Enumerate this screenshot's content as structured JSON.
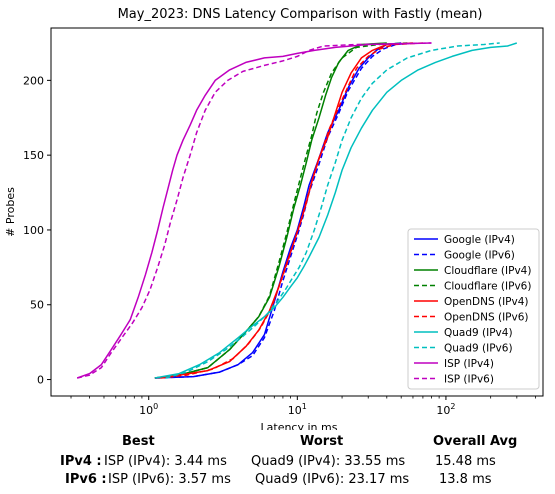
{
  "chart_data": {
    "type": "line",
    "title": "May_2023: DNS Latency Comparison with Fastly (mean)",
    "xlabel": "Latency in ms",
    "ylabel": "# Probes",
    "xscale": "log",
    "xlim": [
      0.22,
      450
    ],
    "ylim": [
      -11,
      235
    ],
    "xticks": [
      1,
      10,
      100
    ],
    "xtick_labels": [
      "10^0",
      "10^1",
      "10^2"
    ],
    "yticks": [
      0,
      50,
      100,
      150,
      200
    ],
    "grid": false,
    "legend_position": "lower-right",
    "series": [
      {
        "name": "Google (IPv4)",
        "color": "#0000ff",
        "dash": "solid",
        "points": [
          [
            1.1,
            1
          ],
          [
            2.0,
            2
          ],
          [
            3.0,
            5
          ],
          [
            4.0,
            10
          ],
          [
            5.0,
            18
          ],
          [
            6.0,
            30
          ],
          [
            7.0,
            52
          ],
          [
            8.0,
            72
          ],
          [
            9.0,
            88
          ],
          [
            10.0,
            100
          ],
          [
            11.0,
            115
          ],
          [
            12.0,
            130
          ],
          [
            14.0,
            148
          ],
          [
            16.0,
            165
          ],
          [
            19.0,
            180
          ],
          [
            22.0,
            195
          ],
          [
            26.0,
            208
          ],
          [
            30.0,
            215
          ],
          [
            34.0,
            220
          ],
          [
            40.0,
            224
          ],
          [
            50.0,
            225
          ]
        ]
      },
      {
        "name": "Google (IPv6)",
        "color": "#0000ff",
        "dash": "dashed",
        "points": [
          [
            1.1,
            1
          ],
          [
            2.0,
            2
          ],
          [
            3.0,
            5
          ],
          [
            4.0,
            10
          ],
          [
            5.0,
            16
          ],
          [
            6.0,
            28
          ],
          [
            7.0,
            46
          ],
          [
            8.0,
            66
          ],
          [
            9.0,
            82
          ],
          [
            10.0,
            96
          ],
          [
            11.0,
            110
          ],
          [
            12.0,
            125
          ],
          [
            14.0,
            144
          ],
          [
            16.0,
            162
          ],
          [
            19.0,
            178
          ],
          [
            22.0,
            193
          ],
          [
            27.0,
            208
          ],
          [
            32.0,
            216
          ],
          [
            38.0,
            221
          ],
          [
            46.0,
            224
          ],
          [
            60.0,
            225
          ]
        ]
      },
      {
        "name": "Cloudflare (IPv4)",
        "color": "#008000",
        "dash": "solid",
        "points": [
          [
            1.1,
            1
          ],
          [
            1.6,
            3
          ],
          [
            2.5,
            8
          ],
          [
            3.5,
            20
          ],
          [
            4.5,
            32
          ],
          [
            5.5,
            42
          ],
          [
            6.5,
            55
          ],
          [
            7.5,
            75
          ],
          [
            8.5,
            95
          ],
          [
            9.5,
            115
          ],
          [
            10.5,
            130
          ],
          [
            11.5,
            145
          ],
          [
            12.5,
            160
          ],
          [
            14.0,
            175
          ],
          [
            15.5,
            190
          ],
          [
            17.0,
            202
          ],
          [
            19.0,
            212
          ],
          [
            22.0,
            220
          ],
          [
            27.0,
            224
          ],
          [
            40.0,
            225
          ]
        ]
      },
      {
        "name": "Cloudflare (IPv6)",
        "color": "#008000",
        "dash": "dashed",
        "points": [
          [
            1.1,
            1
          ],
          [
            1.6,
            3
          ],
          [
            2.5,
            8
          ],
          [
            3.5,
            20
          ],
          [
            4.5,
            32
          ],
          [
            5.5,
            42
          ],
          [
            6.5,
            56
          ],
          [
            7.5,
            78
          ],
          [
            8.5,
            98
          ],
          [
            9.5,
            118
          ],
          [
            10.5,
            135
          ],
          [
            11.5,
            150
          ],
          [
            12.5,
            163
          ],
          [
            13.5,
            178
          ],
          [
            15.0,
            192
          ],
          [
            17.0,
            205
          ],
          [
            20.0,
            215
          ],
          [
            25.0,
            222
          ],
          [
            35.0,
            224
          ],
          [
            55.0,
            225
          ]
        ]
      },
      {
        "name": "OpenDNS (IPv4)",
        "color": "#ff0000",
        "dash": "solid",
        "points": [
          [
            1.1,
            1
          ],
          [
            1.6,
            3
          ],
          [
            2.5,
            6
          ],
          [
            3.5,
            12
          ],
          [
            4.5,
            22
          ],
          [
            5.5,
            33
          ],
          [
            6.5,
            46
          ],
          [
            7.5,
            62
          ],
          [
            8.5,
            78
          ],
          [
            9.5,
            92
          ],
          [
            10.5,
            105
          ],
          [
            11.5,
            118
          ],
          [
            12.5,
            132
          ],
          [
            14.0,
            148
          ],
          [
            16.0,
            162
          ],
          [
            18.0,
            178
          ],
          [
            20.0,
            192
          ],
          [
            23.0,
            205
          ],
          [
            27.0,
            215
          ],
          [
            32.0,
            220
          ],
          [
            40.0,
            224
          ],
          [
            60.0,
            225
          ]
        ]
      },
      {
        "name": "OpenDNS (IPv6)",
        "color": "#ff0000",
        "dash": "dashed",
        "points": [
          [
            1.2,
            1
          ],
          [
            1.8,
            3
          ],
          [
            2.7,
            7
          ],
          [
            3.7,
            14
          ],
          [
            4.7,
            24
          ],
          [
            5.7,
            35
          ],
          [
            6.7,
            48
          ],
          [
            7.7,
            65
          ],
          [
            8.7,
            80
          ],
          [
            9.7,
            95
          ],
          [
            10.7,
            108
          ],
          [
            11.7,
            122
          ],
          [
            13.0,
            138
          ],
          [
            14.5,
            152
          ],
          [
            16.5,
            168
          ],
          [
            19.0,
            182
          ],
          [
            22.0,
            196
          ],
          [
            25.0,
            208
          ],
          [
            30.0,
            216
          ],
          [
            36.0,
            221
          ],
          [
            45.0,
            224
          ],
          [
            70.0,
            225
          ]
        ]
      },
      {
        "name": "Quad9 (IPv4)",
        "color": "#00bfbf",
        "dash": "solid",
        "points": [
          [
            1.1,
            1
          ],
          [
            1.6,
            4
          ],
          [
            2.2,
            10
          ],
          [
            3.0,
            18
          ],
          [
            4.0,
            28
          ],
          [
            5.0,
            36
          ],
          [
            6.0,
            42
          ],
          [
            7.0,
            48
          ],
          [
            8.0,
            55
          ],
          [
            9.0,
            62
          ],
          [
            10.0,
            68
          ],
          [
            11.0,
            75
          ],
          [
            12.0,
            82
          ],
          [
            14.0,
            95
          ],
          [
            16.0,
            110
          ],
          [
            18.0,
            125
          ],
          [
            20.0,
            140
          ],
          [
            23.0,
            155
          ],
          [
            27.0,
            168
          ],
          [
            32.0,
            180
          ],
          [
            40.0,
            192
          ],
          [
            50.0,
            200
          ],
          [
            65.0,
            207
          ],
          [
            85.0,
            212
          ],
          [
            110.0,
            216
          ],
          [
            150.0,
            220
          ],
          [
            200.0,
            222
          ],
          [
            260.0,
            223
          ],
          [
            300.0,
            225
          ]
        ]
      },
      {
        "name": "Quad9 (IPv6)",
        "color": "#00bfbf",
        "dash": "dashed",
        "points": [
          [
            1.3,
            1
          ],
          [
            1.8,
            5
          ],
          [
            2.5,
            12
          ],
          [
            3.3,
            20
          ],
          [
            4.2,
            28
          ],
          [
            5.2,
            36
          ],
          [
            6.3,
            44
          ],
          [
            7.3,
            52
          ],
          [
            8.3,
            60
          ],
          [
            9.3,
            68
          ],
          [
            10.3,
            75
          ],
          [
            11.5,
            85
          ],
          [
            13.0,
            100
          ],
          [
            14.5,
            115
          ],
          [
            16.0,
            130
          ],
          [
            18.0,
            145
          ],
          [
            20.0,
            160
          ],
          [
            23.0,
            175
          ],
          [
            27.0,
            188
          ],
          [
            32.0,
            198
          ],
          [
            40.0,
            207
          ],
          [
            55.0,
            215
          ],
          [
            80.0,
            220
          ],
          [
            120.0,
            223
          ],
          [
            180.0,
            224
          ],
          [
            230.0,
            225
          ]
        ]
      },
      {
        "name": "ISP (IPv4)",
        "color": "#bf00bf",
        "dash": "solid",
        "points": [
          [
            0.33,
            1
          ],
          [
            0.4,
            4
          ],
          [
            0.48,
            10
          ],
          [
            0.56,
            20
          ],
          [
            0.65,
            30
          ],
          [
            0.75,
            40
          ],
          [
            0.85,
            55
          ],
          [
            0.95,
            70
          ],
          [
            1.05,
            85
          ],
          [
            1.15,
            100
          ],
          [
            1.25,
            115
          ],
          [
            1.35,
            128
          ],
          [
            1.45,
            140
          ],
          [
            1.55,
            150
          ],
          [
            1.7,
            160
          ],
          [
            1.9,
            170
          ],
          [
            2.1,
            180
          ],
          [
            2.4,
            190
          ],
          [
            2.8,
            200
          ],
          [
            3.5,
            207
          ],
          [
            4.5,
            212
          ],
          [
            6.0,
            215
          ],
          [
            8.0,
            216
          ],
          [
            10.0,
            218
          ],
          [
            13.0,
            220
          ],
          [
            18.0,
            222
          ],
          [
            30.0,
            224
          ],
          [
            80.0,
            225
          ]
        ]
      },
      {
        "name": "ISP (IPv6)",
        "color": "#bf00bf",
        "dash": "dashed",
        "points": [
          [
            0.33,
            1
          ],
          [
            0.4,
            3
          ],
          [
            0.48,
            8
          ],
          [
            0.56,
            18
          ],
          [
            0.66,
            28
          ],
          [
            0.78,
            38
          ],
          [
            0.9,
            48
          ],
          [
            1.02,
            60
          ],
          [
            1.15,
            75
          ],
          [
            1.28,
            90
          ],
          [
            1.4,
            105
          ],
          [
            1.55,
            120
          ],
          [
            1.7,
            135
          ],
          [
            1.9,
            150
          ],
          [
            2.1,
            165
          ],
          [
            2.4,
            180
          ],
          [
            2.8,
            192
          ],
          [
            3.4,
            200
          ],
          [
            4.3,
            206
          ],
          [
            6.0,
            210
          ],
          [
            8.0,
            213
          ],
          [
            10.0,
            216
          ],
          [
            12.0,
            220
          ],
          [
            15.0,
            223
          ],
          [
            25.0,
            224
          ],
          [
            80.0,
            225
          ]
        ]
      }
    ]
  },
  "summary": {
    "col_best": "Best",
    "col_worst": "Worst",
    "col_avg": "Overall Avg",
    "rows": [
      {
        "label": "IPv4 :",
        "best": "ISP (IPv4): 3.44 ms",
        "worst": "Quad9 (IPv4): 33.55 ms",
        "avg": "15.48 ms"
      },
      {
        "label": "IPv6 :",
        "best": "ISP (IPv6): 3.57 ms",
        "worst": "Quad9 (IPv6): 23.17 ms",
        "avg": "13.8 ms"
      }
    ]
  }
}
